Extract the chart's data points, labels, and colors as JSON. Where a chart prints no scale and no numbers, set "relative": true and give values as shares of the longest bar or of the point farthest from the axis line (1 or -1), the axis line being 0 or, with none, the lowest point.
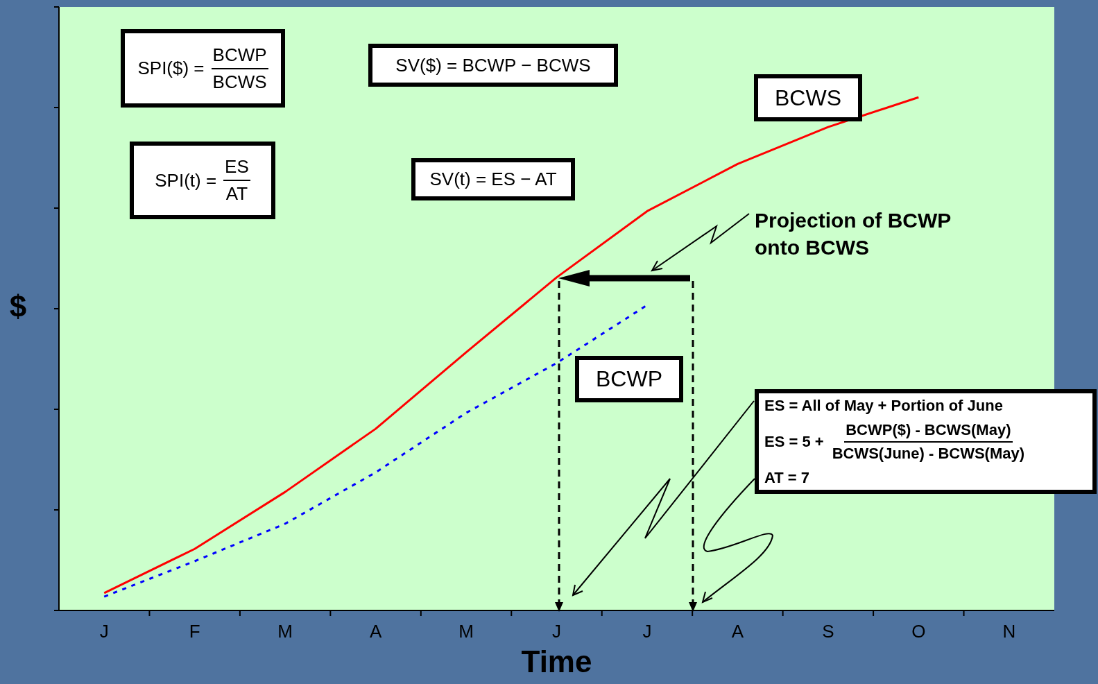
{
  "chart_data": {
    "type": "line",
    "relative": true,
    "xlabel": "Time",
    "ylabel": "$",
    "categories": [
      "J",
      "F",
      "M",
      "A",
      "M",
      "J",
      "J",
      "A",
      "S",
      "O",
      "N"
    ],
    "legend": false,
    "marker": "none",
    "series": [
      {
        "name": "BCWS",
        "color": "#ff0000",
        "line_style": "solid",
        "values": [
          0.034,
          0.12,
          0.231,
          0.354,
          0.503,
          0.649,
          0.778,
          0.87,
          0.942,
          1,
          null
        ]
      },
      {
        "name": "BCWP",
        "color": "#0000ff",
        "line_style": "dashed",
        "values": [
          0.027,
          0.096,
          0.169,
          0.269,
          0.385,
          0.482,
          0.595,
          null,
          null,
          null,
          null
        ]
      }
    ],
    "annotations": [
      "SPI($) =",
      "BCWP",
      "BCWS",
      "SV($) = BCWP − BCWS",
      "SPI(t) =",
      "ES",
      "AT",
      "SV(t) = ES − AT",
      "Projection of BCWP onto BCWS",
      "ES = All of May + Portion of June",
      "ES = 5 +",
      "BCWP($) - BCWS(May)",
      "BCWS(June) - BCWS(May)",
      "AT = 7"
    ]
  }
}
